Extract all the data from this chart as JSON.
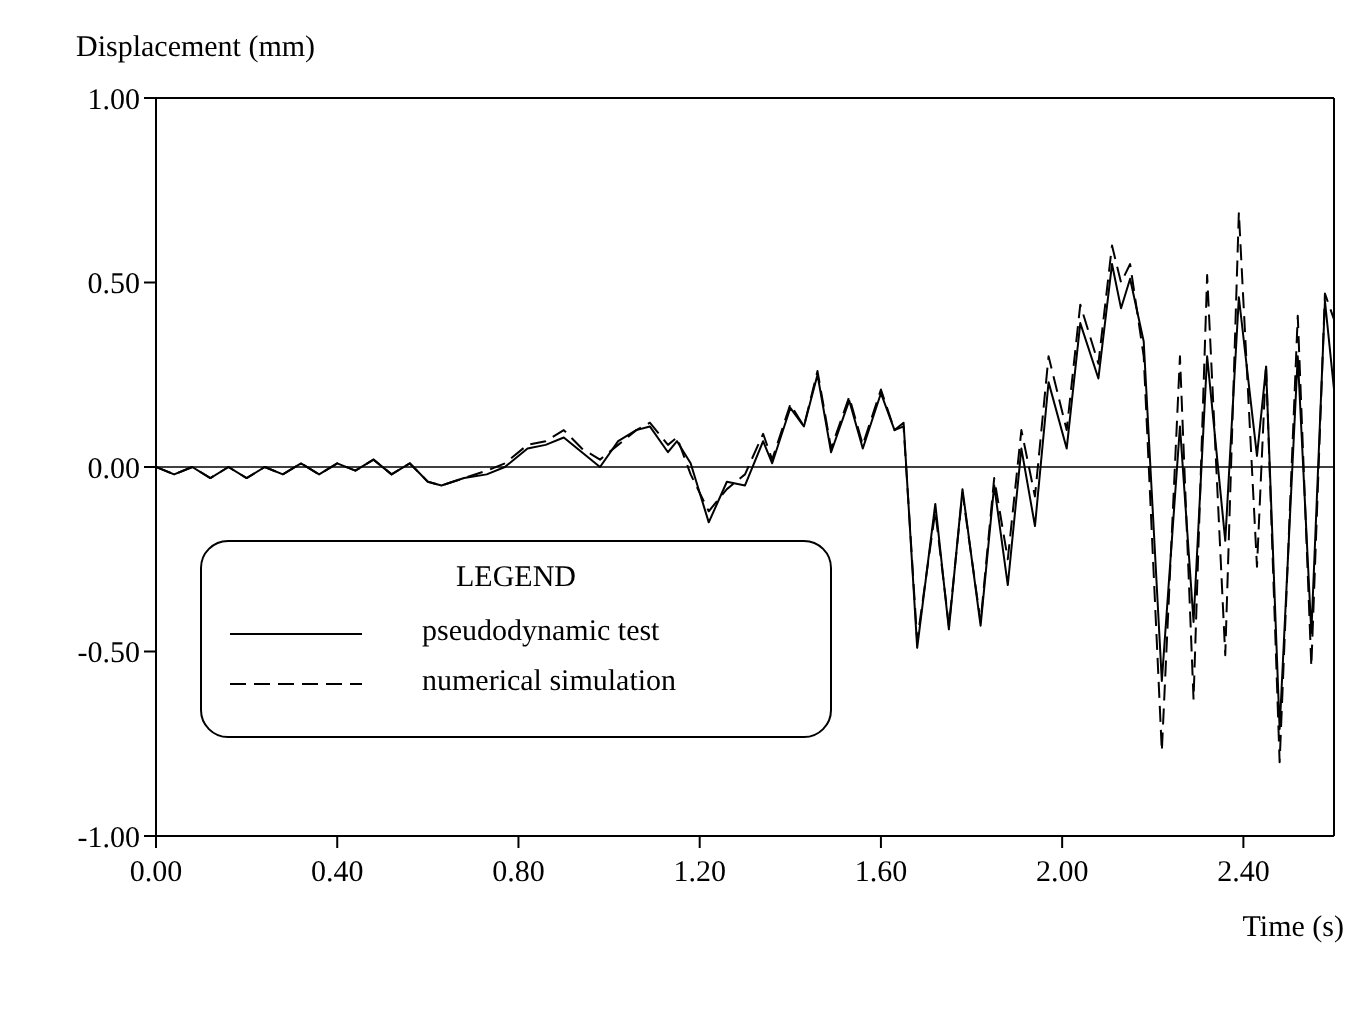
{
  "chart_data": {
    "type": "line",
    "xlabel": "Time (s)",
    "ylabel": "Displacement (mm)",
    "legend_title": "LEGEND",
    "legend": "bottom left",
    "grid": false,
    "marker": "none",
    "x": [
      0,
      0.04,
      0.08,
      0.12,
      0.16,
      0.2,
      0.24,
      0.28,
      0.32,
      0.36,
      0.4,
      0.44,
      0.48,
      0.52,
      0.56,
      0.6,
      0.63,
      0.68,
      0.73,
      0.77,
      0.82,
      0.86,
      0.9,
      0.94,
      0.98,
      1.02,
      1.06,
      1.09,
      1.13,
      1.15,
      1.18,
      1.22,
      1.26,
      1.3,
      1.34,
      1.36,
      1.4,
      1.43,
      1.46,
      1.49,
      1.53,
      1.56,
      1.6,
      1.63,
      1.65,
      1.68,
      1.72,
      1.75,
      1.78,
      1.82,
      1.85,
      1.88,
      1.91,
      1.94,
      1.97,
      2.01,
      2.04,
      2.08,
      2.11,
      2.13,
      2.15,
      2.18,
      2.22,
      2.26,
      2.29,
      2.32,
      2.36,
      2.39,
      2.43,
      2.45,
      2.48,
      2.52,
      2.55,
      2.58,
      2.6
    ],
    "series": [
      {
        "name": "pseudodynamic test",
        "color": "#000000",
        "line_style": "solid",
        "values": [
          0,
          -0.02,
          0,
          -0.03,
          0,
          -0.03,
          0,
          -0.02,
          0.01,
          -0.02,
          0.01,
          -0.01,
          0.02,
          -0.02,
          0.01,
          -0.04,
          -0.05,
          -0.03,
          -0.02,
          0,
          0.05,
          0.06,
          0.08,
          0.04,
          0,
          0.07,
          0.1,
          0.11,
          0.04,
          0.07,
          0.01,
          -0.15,
          -0.04,
          -0.05,
          0.07,
          0.01,
          0.16,
          0.11,
          0.25,
          0.04,
          0.18,
          0.05,
          0.2,
          0.1,
          0.12,
          -0.49,
          -0.1,
          -0.44,
          -0.06,
          -0.43,
          -0.05,
          -0.32,
          0.05,
          -0.16,
          0.23,
          0.05,
          0.39,
          0.24,
          0.55,
          0.43,
          0.51,
          0.34,
          -0.58,
          0.11,
          -0.42,
          0.3,
          -0.2,
          0.46,
          0.03,
          0.27,
          -0.71,
          0.3,
          -0.45,
          0.45,
          0.21
        ]
      },
      {
        "name": "numerical simulation",
        "color": "#000000",
        "line_style": "dashed",
        "values": [
          0,
          -0.02,
          0,
          -0.03,
          0,
          -0.03,
          0,
          -0.02,
          0.01,
          -0.02,
          0.01,
          -0.01,
          0.02,
          -0.02,
          0.01,
          -0.04,
          -0.05,
          -0.03,
          -0.01,
          0.01,
          0.06,
          0.07,
          0.1,
          0.05,
          0.02,
          0.06,
          0.1,
          0.12,
          0.06,
          0.08,
          -0.02,
          -0.12,
          -0.06,
          -0.02,
          0.09,
          0.02,
          0.17,
          0.11,
          0.26,
          0.05,
          0.19,
          0.06,
          0.21,
          0.1,
          0.11,
          -0.47,
          -0.12,
          -0.43,
          -0.07,
          -0.42,
          -0.03,
          -0.25,
          0.1,
          -0.08,
          0.3,
          0.1,
          0.44,
          0.28,
          0.6,
          0.5,
          0.55,
          0.3,
          -0.77,
          0.3,
          -0.63,
          0.52,
          -0.51,
          0.69,
          -0.27,
          0.28,
          -0.8,
          0.41,
          -0.54,
          0.47,
          0.4
        ]
      }
    ],
    "xlim": [
      0,
      2.6
    ],
    "xticks": [
      {
        "value": 0,
        "label": "0.00"
      },
      {
        "value": 0.4,
        "label": "0.40"
      },
      {
        "value": 0.8,
        "label": "0.80"
      },
      {
        "value": 1.2,
        "label": "1.20"
      },
      {
        "value": 1.6,
        "label": "1.60"
      },
      {
        "value": 2,
        "label": "2.00"
      },
      {
        "value": 2.4,
        "label": "2.40"
      }
    ],
    "ylim": [
      -1,
      1
    ],
    "yticks": [
      {
        "value": -1,
        "label": "-1.00"
      },
      {
        "value": -0.5,
        "label": "-0.50"
      },
      {
        "value": 0,
        "label": "0.00"
      },
      {
        "value": 0.5,
        "label": "0.50"
      },
      {
        "value": 1,
        "label": "1.00"
      }
    ],
    "ref_lines": [
      {
        "axis": "y",
        "value": 0,
        "label": null,
        "color": "#000000",
        "line_style": "solid"
      }
    ]
  }
}
